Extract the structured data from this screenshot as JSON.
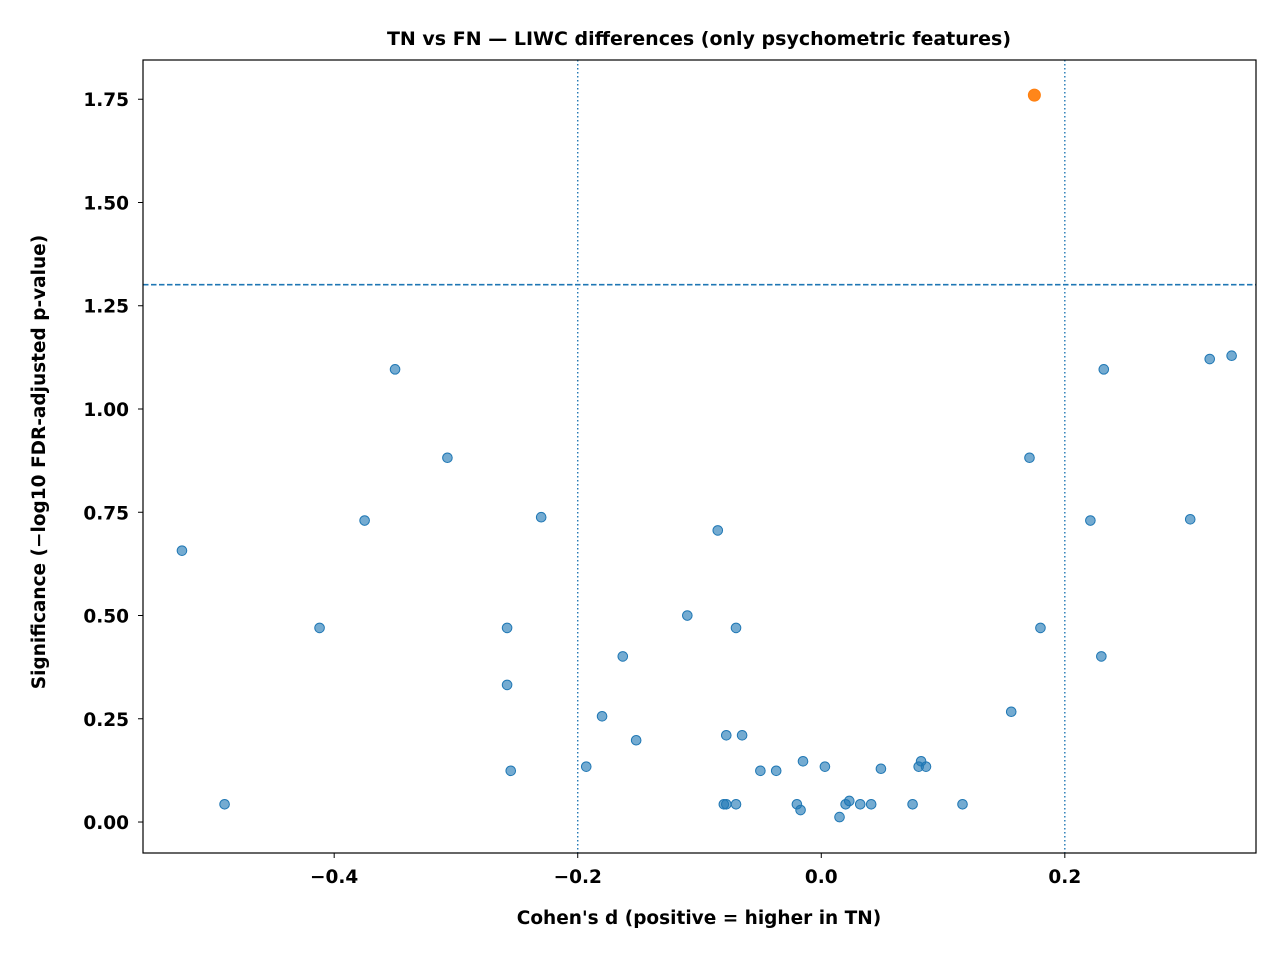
{
  "chart_data": {
    "type": "scatter",
    "title": "TN vs FN — LIWC differences (only psychometric features)",
    "xlabel": "Cohen's d (positive = higher in TN)",
    "ylabel": "Significance (−log10 FDR-adjusted p-value)",
    "xlim": [
      -0.557,
      0.357
    ],
    "ylim": [
      -0.075,
      1.845
    ],
    "xticks": [
      {
        "value": -0.4,
        "label": "−0.4"
      },
      {
        "value": -0.2,
        "label": "−0.2"
      },
      {
        "value": 0.0,
        "label": "0.0"
      },
      {
        "value": 0.2,
        "label": "0.2"
      }
    ],
    "yticks": [
      {
        "value": 0.0,
        "label": "0.00"
      },
      {
        "value": 0.25,
        "label": "0.25"
      },
      {
        "value": 0.5,
        "label": "0.50"
      },
      {
        "value": 0.75,
        "label": "0.75"
      },
      {
        "value": 1.0,
        "label": "1.00"
      },
      {
        "value": 1.25,
        "label": "1.25"
      },
      {
        "value": 1.5,
        "label": "1.50"
      },
      {
        "value": 1.75,
        "label": "1.75"
      }
    ],
    "grid": false,
    "thresholds": {
      "significance_y": 1.301,
      "effect_x": [
        -0.2,
        0.2
      ]
    },
    "colors": {
      "nonsignificant": "#1f77b4",
      "significant": "#ff7f0e",
      "threshold_lines": "#1f77b4"
    },
    "series": [
      {
        "key": "nonsignificant",
        "points": [
          [
            -0.525,
            0.657
          ],
          [
            -0.49,
            0.043
          ],
          [
            -0.412,
            0.47
          ],
          [
            -0.375,
            0.73
          ],
          [
            -0.35,
            1.096
          ],
          [
            -0.307,
            0.882
          ],
          [
            -0.258,
            0.47
          ],
          [
            -0.258,
            0.332
          ],
          [
            -0.255,
            0.124
          ],
          [
            -0.23,
            0.738
          ],
          [
            -0.193,
            0.134
          ],
          [
            -0.18,
            0.256
          ],
          [
            -0.163,
            0.401
          ],
          [
            -0.152,
            0.198
          ],
          [
            -0.11,
            0.5
          ],
          [
            -0.085,
            0.706
          ],
          [
            -0.08,
            0.043
          ],
          [
            -0.078,
            0.21
          ],
          [
            -0.078,
            0.043
          ],
          [
            -0.07,
            0.47
          ],
          [
            -0.07,
            0.043
          ],
          [
            -0.065,
            0.21
          ],
          [
            -0.05,
            0.124
          ],
          [
            -0.037,
            0.124
          ],
          [
            -0.02,
            0.043
          ],
          [
            -0.017,
            0.029
          ],
          [
            -0.015,
            0.147
          ],
          [
            0.003,
            0.134
          ],
          [
            0.015,
            0.012
          ],
          [
            0.02,
            0.043
          ],
          [
            0.023,
            0.051
          ],
          [
            0.032,
            0.043
          ],
          [
            0.041,
            0.043
          ],
          [
            0.049,
            0.129
          ],
          [
            0.075,
            0.043
          ],
          [
            0.08,
            0.134
          ],
          [
            0.082,
            0.147
          ],
          [
            0.086,
            0.134
          ],
          [
            0.116,
            0.043
          ],
          [
            0.156,
            0.267
          ],
          [
            0.171,
            0.882
          ],
          [
            0.18,
            0.47
          ],
          [
            0.221,
            0.73
          ],
          [
            0.23,
            0.401
          ],
          [
            0.232,
            1.096
          ],
          [
            0.303,
            0.733
          ],
          [
            0.319,
            1.121
          ],
          [
            0.337,
            1.129
          ]
        ]
      },
      {
        "key": "significant",
        "points": [
          [
            0.175,
            1.76
          ]
        ]
      }
    ]
  }
}
